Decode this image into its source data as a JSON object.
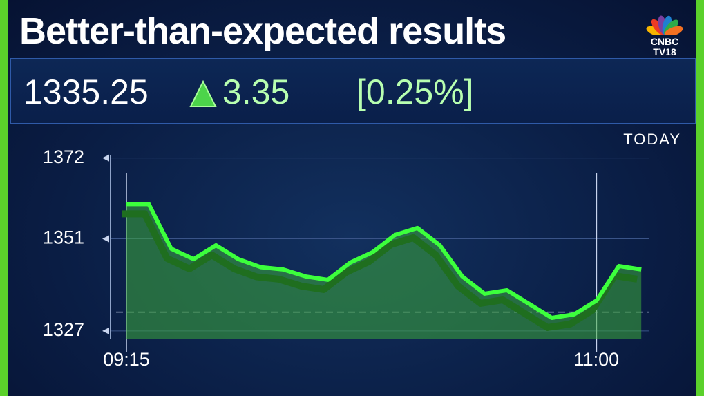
{
  "header": {
    "title": "Better-than-expected results",
    "logo": [
      "CNBC",
      "TV18"
    ],
    "price": "1335.25",
    "change": "3.35",
    "change_pct": "[0.25%]"
  },
  "chart_data": {
    "type": "line",
    "label": "TODAY",
    "color": "#3cff3c",
    "x": [
      "09:15",
      "09:20",
      "09:25",
      "09:30",
      "09:35",
      "09:40",
      "09:45",
      "09:50",
      "09:55",
      "10:00",
      "10:05",
      "10:10",
      "10:15",
      "10:20",
      "10:25",
      "10:30",
      "10:35",
      "10:40",
      "10:45",
      "10:50",
      "10:55",
      "11:00",
      "11:05",
      "11:10"
    ],
    "values": [
      1360,
      1360,
      1348.4,
      1345.7,
      1349.3,
      1345.7,
      1343.6,
      1343,
      1341.2,
      1340.3,
      1344.8,
      1347.5,
      1352,
      1353.8,
      1349.3,
      1341.2,
      1336.7,
      1337.6,
      1334,
      1330.4,
      1331.3,
      1334.9,
      1343.9,
      1343
    ],
    "xticks": [
      "09:15",
      "11:00"
    ],
    "ylim": [
      1325,
      1375
    ],
    "yticks": [
      1327,
      1351,
      1372
    ],
    "prev_close": 1331.9
  }
}
